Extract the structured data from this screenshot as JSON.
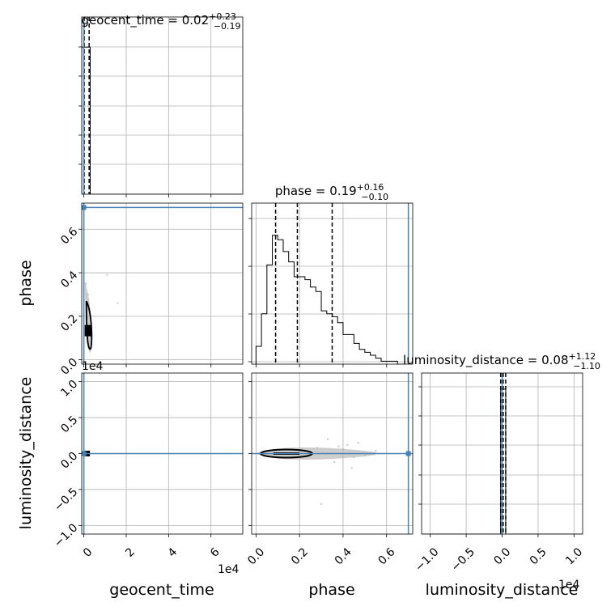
{
  "colors": {
    "truth": "#4682b4",
    "hist": "#000000",
    "grid": "#b0b0b0",
    "points": "#999999"
  },
  "chart_data": {
    "type": "corner",
    "parameters": [
      "geocent_time",
      "phase",
      "luminosity_distance"
    ],
    "axis_labels": {
      "geocent_time": "geocent_time",
      "phase": "phase",
      "luminosity_distance": "luminosity_distance"
    },
    "titles": {
      "geocent_time": {
        "prefix": "geocent_time = 0.02",
        "sup": "+0.23",
        "sub": "−0.19"
      },
      "phase": {
        "prefix": "phase = 0.19",
        "sup": "+0.16",
        "sub": "−0.10"
      },
      "luminosity_distance": {
        "prefix": "luminosity_distance = 0.08",
        "sup": "+1.12",
        "sub": "−1.10"
      }
    },
    "offset_labels": {
      "geocent_time_x": "1e4",
      "geocent_time_y": "1e4",
      "luminosity_distance_x": "1e4"
    },
    "ranges": {
      "geocent_time": [
        -0.1,
        7.5
      ],
      "phase": [
        -0.02,
        0.72
      ],
      "luminosity_distance": [
        -1.12,
        1.12
      ]
    },
    "ticks": {
      "geocent_time": {
        "values": [
          0,
          2,
          4,
          6
        ],
        "labels": [
          "0",
          "2",
          "4",
          "6"
        ]
      },
      "phase": {
        "values": [
          0.0,
          0.2,
          0.4,
          0.6
        ],
        "labels": [
          "0.0",
          "0.2",
          "0.4",
          "0.6"
        ]
      },
      "luminosity_distance_x": {
        "values": [
          -1.0,
          -0.5,
          0.0,
          0.5,
          1.0
        ],
        "labels": [
          "−1.0",
          "−0.5",
          "0.0",
          "0.5",
          "1.0"
        ]
      },
      "luminosity_distance_y": {
        "values": [
          -1.0,
          -0.5,
          0.0,
          0.5,
          1.0
        ],
        "labels": [
          "−1.0",
          "−0.5",
          "0.0",
          "0.5",
          "1.0"
        ]
      }
    },
    "truths": {
      "geocent_time": 0.0,
      "phase": 0.7,
      "luminosity_distance": 0.0
    },
    "quantiles": {
      "geocent_time": [
        -0.17,
        0.02,
        0.25
      ],
      "phase": [
        0.09,
        0.19,
        0.35
      ],
      "luminosity_distance": [
        -1.02,
        0.08,
        1.2
      ]
    },
    "histograms": {
      "geocent_time": {
        "edges": [
          -0.1,
          0.0,
          0.3,
          7.5
        ],
        "counts": [
          1.0,
          1.0,
          0.0
        ]
      },
      "phase": {
        "edges": [
          0.0,
          0.025,
          0.05,
          0.075,
          0.1,
          0.125,
          0.15,
          0.175,
          0.2,
          0.225,
          0.25,
          0.275,
          0.3,
          0.325,
          0.35,
          0.375,
          0.4,
          0.425,
          0.45,
          0.475,
          0.5,
          0.525,
          0.55,
          0.575,
          0.6,
          0.625,
          0.65,
          0.675,
          0.7
        ],
        "counts": [
          0.12,
          0.34,
          0.67,
          0.87,
          0.84,
          0.76,
          0.69,
          0.59,
          0.59,
          0.57,
          0.52,
          0.49,
          0.36,
          0.34,
          0.32,
          0.28,
          0.2,
          0.2,
          0.14,
          0.1,
          0.08,
          0.06,
          0.04,
          0.02,
          0.02,
          0.02,
          0.0,
          0.0
        ]
      },
      "luminosity_distance": {
        "edges": [
          -1.12,
          -0.02,
          0.05,
          1.12
        ],
        "counts": [
          0.0,
          1.0,
          0.0
        ]
      }
    },
    "scatter": {
      "phase_vs_geocent_time": [
        [
          1.1,
          0.39
        ],
        [
          1.6,
          0.26
        ],
        [
          0.1,
          0.35
        ],
        [
          0.2,
          0.3
        ],
        [
          0.25,
          0.15
        ],
        [
          0.15,
          0.08
        ]
      ],
      "luminosity_distance_vs_phase": [
        [
          0.38,
          0.1
        ],
        [
          0.42,
          0.12
        ],
        [
          0.45,
          -0.05
        ],
        [
          0.3,
          -0.7
        ],
        [
          0.4,
          0.06
        ],
        [
          0.5,
          -0.03
        ],
        [
          0.33,
          0.2
        ],
        [
          0.47,
          0.15
        ],
        [
          0.36,
          -0.12
        ],
        [
          0.55,
          0.04
        ],
        [
          0.28,
          0.08
        ],
        [
          0.44,
          -0.2
        ]
      ]
    }
  }
}
